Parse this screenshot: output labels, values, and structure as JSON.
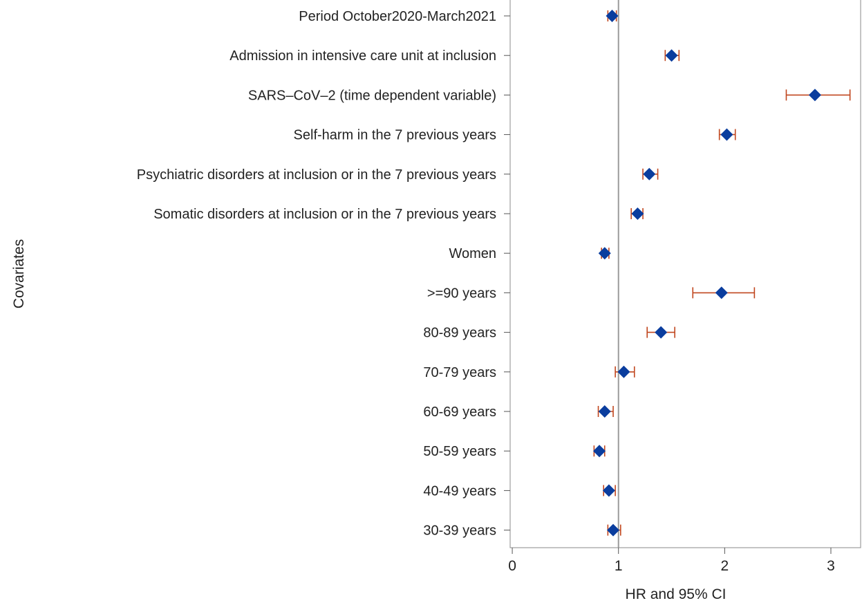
{
  "chart_data": {
    "type": "scatter",
    "subtype": "forest-plot",
    "xlabel": "HR and 95% CI",
    "ylabel": "Covariates",
    "xlim": [
      -0.02,
      3.28
    ],
    "xticks": [
      0,
      1,
      2,
      3
    ],
    "reference_line": 1,
    "grid": false,
    "marker_color": "#0a3d9e",
    "ci_color": "#c0461e",
    "ref_line_color": "#9a9a9a",
    "rows": [
      {
        "label": "Period October2020-March2021",
        "hr": 0.94,
        "lo": 0.9,
        "hi": 0.98
      },
      {
        "label": "Admission in intensive care unit at inclusion",
        "hr": 1.5,
        "lo": 1.44,
        "hi": 1.57
      },
      {
        "label": "SARS–CoV–2 (time dependent variable)",
        "hr": 2.85,
        "lo": 2.58,
        "hi": 3.18
      },
      {
        "label": "Self-harm in the 7 previous years",
        "hr": 2.02,
        "lo": 1.95,
        "hi": 2.1
      },
      {
        "label": "Psychiatric disorders  at inclusion or in the 7 previous years",
        "hr": 1.29,
        "lo": 1.23,
        "hi": 1.37
      },
      {
        "label": "Somatic disorders at inclusion or in the 7 previous years",
        "hr": 1.18,
        "lo": 1.12,
        "hi": 1.23
      },
      {
        "label": "Women",
        "hr": 0.87,
        "lo": 0.84,
        "hi": 0.91
      },
      {
        "label": ">=90 years",
        "hr": 1.97,
        "lo": 1.7,
        "hi": 2.28
      },
      {
        "label": "80-89 years",
        "hr": 1.4,
        "lo": 1.27,
        "hi": 1.53
      },
      {
        "label": "70-79 years",
        "hr": 1.05,
        "lo": 0.97,
        "hi": 1.15
      },
      {
        "label": "60-69 years",
        "hr": 0.87,
        "lo": 0.81,
        "hi": 0.95
      },
      {
        "label": "50-59 years",
        "hr": 0.82,
        "lo": 0.77,
        "hi": 0.87
      },
      {
        "label": "40-49 years",
        "hr": 0.91,
        "lo": 0.86,
        "hi": 0.97
      },
      {
        "label": "30-39 years",
        "hr": 0.95,
        "lo": 0.9,
        "hi": 1.02
      }
    ]
  }
}
